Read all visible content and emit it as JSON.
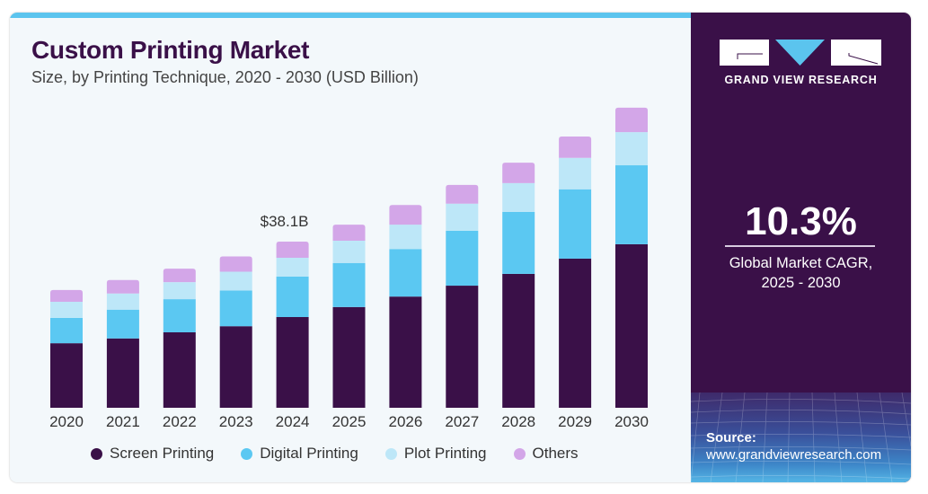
{
  "header": {
    "title": "Custom Printing Market",
    "subtitle": "Size, by Printing Technique, 2020 - 2030 (USD Billion)"
  },
  "brand": {
    "name": "GRAND VIEW RESEARCH"
  },
  "stat": {
    "value": "10.3%",
    "label_line1": "Global Market CAGR,",
    "label_line2": "2025 - 2030"
  },
  "source": {
    "label": "Source:",
    "url": "www.grandviewresearch.com"
  },
  "colors": {
    "accent_bar": "#5bc4ee",
    "panel": "#3a1048",
    "background": "#f3f8fb"
  },
  "chart_data": {
    "type": "bar",
    "stacked": true,
    "title": "Custom Printing Market",
    "subtitle": "Size, by Printing Technique, 2020 - 2030 (USD Billion)",
    "xlabel": "",
    "ylabel": "USD Billion",
    "ylim": [
      0,
      70
    ],
    "grid": false,
    "legend_position": "bottom",
    "categories": [
      "2020",
      "2021",
      "2022",
      "2023",
      "2024",
      "2025",
      "2026",
      "2027",
      "2028",
      "2029",
      "2030"
    ],
    "series": [
      {
        "name": "Screen Printing",
        "color": "#3a1048",
        "values": [
          14.8,
          15.9,
          17.3,
          18.7,
          20.8,
          23.1,
          25.5,
          28.0,
          30.7,
          34.2,
          37.5
        ]
      },
      {
        "name": "Digital Printing",
        "color": "#5bc8f2",
        "values": [
          5.8,
          6.6,
          7.6,
          8.2,
          9.3,
          10.1,
          10.9,
          12.6,
          14.2,
          15.9,
          18.1
        ]
      },
      {
        "name": "Plot Printing",
        "color": "#bde7f8",
        "values": [
          3.7,
          3.7,
          3.9,
          4.3,
          4.3,
          5.1,
          5.6,
          6.2,
          6.6,
          7.2,
          7.6
        ]
      },
      {
        "name": "Others",
        "color": "#d3a6e8",
        "values": [
          2.7,
          3.1,
          3.1,
          3.5,
          3.7,
          3.7,
          4.5,
          4.3,
          4.7,
          4.9,
          5.6
        ]
      }
    ],
    "annotations": [
      {
        "category": "2024",
        "text": "$38.1B"
      }
    ]
  }
}
